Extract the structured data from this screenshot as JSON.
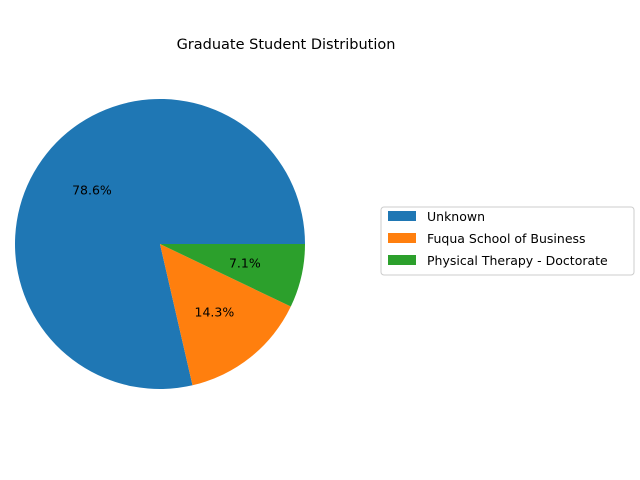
{
  "chart_data": {
    "type": "pie",
    "title": "Graduate Student Distribution",
    "labels": [
      "Unknown",
      "Fuqua School of Business",
      "Physical Therapy - Doctorate"
    ],
    "values": [
      78.6,
      14.3,
      7.1
    ],
    "value_labels": [
      "78.6%",
      "14.3%",
      "7.1%"
    ],
    "colors": [
      "#1f77b4",
      "#ff7f0e",
      "#2ca02c"
    ],
    "start_angle_deg": 0,
    "direction": "counterclockwise",
    "legend": {
      "placement": "center-right",
      "entries": [
        "Unknown",
        "Fuqua School of Business",
        "Physical Therapy - Doctorate"
      ]
    }
  }
}
